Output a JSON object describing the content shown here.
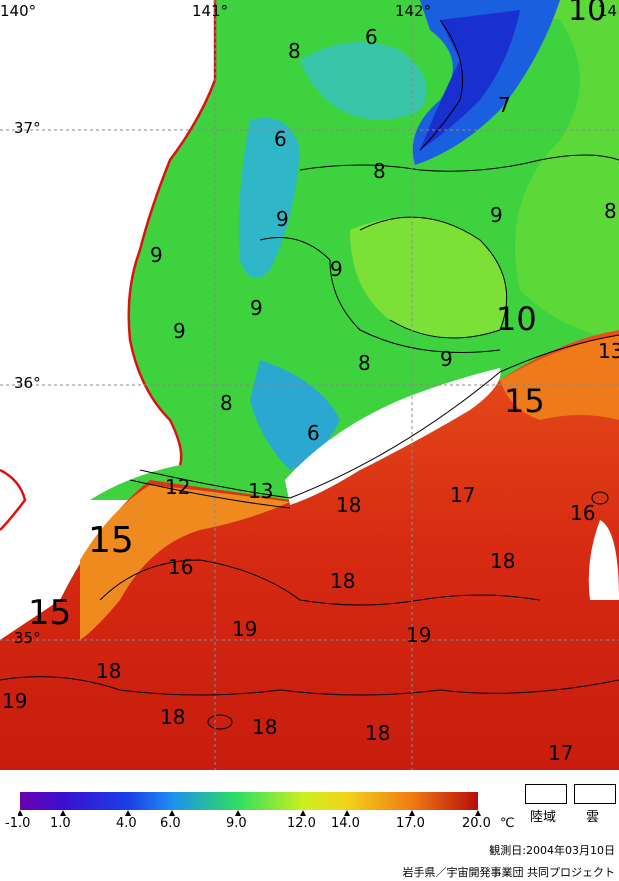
{
  "map": {
    "grid_labels": {
      "lon": [
        "140°",
        "141°",
        "142°",
        "14"
      ],
      "lat": [
        "37°",
        "36°",
        "35°"
      ]
    },
    "contour_labels": [
      "6",
      "8",
      "7",
      "6",
      "8",
      "9",
      "9",
      "9",
      "9",
      "8",
      "9",
      "10",
      "10",
      "9",
      "8",
      "8",
      "6",
      "9",
      "13",
      "15",
      "12",
      "13",
      "18",
      "17",
      "16",
      "15",
      "16",
      "18",
      "18",
      "19",
      "19",
      "15",
      "18",
      "19",
      "18",
      "18",
      "18",
      "17"
    ]
  },
  "colorbar": {
    "ticks": [
      "-1.0",
      "1.0",
      "4.0",
      "6.0",
      "9.0",
      "12.0",
      "14.0",
      "17.0",
      "20.0"
    ],
    "unit": "℃",
    "colors": [
      "#6a00b0",
      "#1a1ae0",
      "#1f8ff0",
      "#22d9c0",
      "#2edf2e",
      "#ccf01e",
      "#f2d21a",
      "#ef7a12",
      "#c81010"
    ]
  },
  "legend": {
    "land": "陸域",
    "cloud": "雲"
  },
  "footer": {
    "observation_date": "観測日:2004年03月10日",
    "credit": "岩手県／宇宙開発事業団 共同プロジェクト"
  }
}
